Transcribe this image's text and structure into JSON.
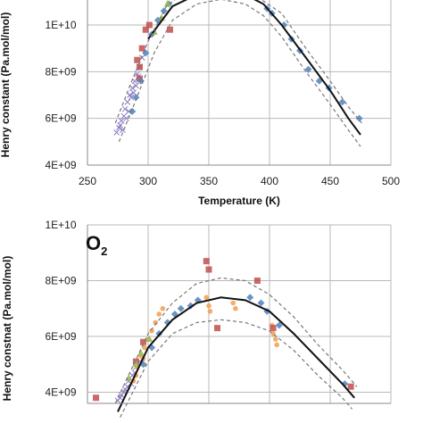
{
  "chart_data": [
    {
      "type": "scatter",
      "panel_label": "",
      "xlabel": "Temperature (K)",
      "ylabel": "Henry constant (Pa.mol/mol)",
      "xlim": [
        250,
        500
      ],
      "ylim": [
        4000000000.0,
        11000000000.0
      ],
      "x_ticks": [
        250,
        300,
        350,
        400,
        450,
        500
      ],
      "y_ticks": [
        4000000000.0,
        6000000000.0,
        8000000000.0,
        10000000000.0
      ],
      "y_tick_labels": [
        "4E+09",
        "6E+09",
        "8E+09",
        "1E+10"
      ],
      "grid": true,
      "series": [
        {
          "kind": "points",
          "marker": "cross",
          "color": "#8e7cc3",
          "points": [
            [
              274,
              5400000000.0
            ],
            [
              276,
              5600000000.0
            ],
            [
              278,
              5900000000.0
            ],
            [
              280,
              6100000000.0
            ],
            [
              281,
              6400000000.0
            ],
            [
              283,
              6700000000.0
            ],
            [
              285,
              7000000000.0
            ],
            [
              287,
              7300000000.0
            ],
            [
              289,
              7600000000.0
            ],
            [
              291,
              7900000000.0
            ],
            [
              293,
              8200000000.0
            ],
            [
              277,
              5700000000.0
            ],
            [
              282,
              6000000000.0
            ],
            [
              286,
              6900000000.0
            ],
            [
              290,
              7400000000.0
            ],
            [
              292,
              7800000000.0
            ],
            [
              288,
              7100000000.0
            ],
            [
              284,
              6300000000.0
            ],
            [
              279,
              5500000000.0
            ],
            [
              295,
              8600000000.0
            ]
          ]
        },
        {
          "kind": "points",
          "marker": "square",
          "color": "#c0504d",
          "points": [
            [
              291,
              8500000000.0
            ],
            [
              293,
              8200000000.0
            ],
            [
              295,
              9000000000.0
            ],
            [
              298,
              9800000000.0
            ],
            [
              301,
              10000000000.0
            ],
            [
              318,
              9800000000.0
            ],
            [
              293,
              7700000000.0
            ]
          ]
        },
        {
          "kind": "points",
          "marker": "diamond",
          "color": "#4f81bd",
          "points": [
            [
              287,
              6300000000.0
            ],
            [
              290,
              6900000000.0
            ],
            [
              294,
              7600000000.0
            ],
            [
              298,
              8800000000.0
            ],
            [
              303,
              9600000000.0
            ],
            [
              308,
              10200000000.0
            ],
            [
              313,
              10600000000.0
            ],
            [
              317,
              10900000000.0
            ],
            [
              398,
              10700000000.0
            ],
            [
              402,
              10500000000.0
            ],
            [
              412,
              10000000000.0
            ],
            [
              418,
              9400000000.0
            ],
            [
              425,
              8900000000.0
            ],
            [
              432,
              8100000000.0
            ],
            [
              441,
              7600000000.0
            ],
            [
              449,
              7300000000.0
            ],
            [
              460,
              6700000000.0
            ],
            [
              474,
              6000000000.0
            ]
          ]
        },
        {
          "kind": "points",
          "marker": "triangle",
          "color": "#9bbb59",
          "points": [
            [
              305,
              9700000000.0
            ],
            [
              311,
              10300000000.0
            ],
            [
              316,
              10900000000.0
            ]
          ]
        },
        {
          "kind": "line",
          "style": "solid",
          "color": "#111111",
          "points": [
            [
              300,
              9400000000.0
            ],
            [
              320,
              10800000000.0
            ],
            [
              340,
              11300000000.0
            ],
            [
              360,
              11400000000.0
            ],
            [
              380,
              11300000000.0
            ],
            [
              395,
              10900000000.0
            ],
            [
              410,
              10000000000.0
            ],
            [
              430,
              8600000000.0
            ],
            [
              450,
              7200000000.0
            ],
            [
              465,
              6000000000.0
            ],
            [
              475,
              5300000000.0
            ]
          ]
        },
        {
          "kind": "line",
          "style": "dashed",
          "color": "#777777",
          "points": [
            [
              273,
              5800000000.0
            ],
            [
              285,
              7400000000.0
            ],
            [
              300,
              9300000000.0
            ],
            [
              315,
              10800000000.0
            ],
            [
              330,
              11400000000.0
            ],
            [
              350,
              11600000000.0
            ],
            [
              370,
              11500000000.0
            ],
            [
              390,
              11200000000.0
            ],
            [
              410,
              10500000000.0
            ],
            [
              430,
              9000000000.0
            ],
            [
              450,
              7600000000.0
            ],
            [
              465,
              6500000000.0
            ],
            [
              476,
              5800000000.0
            ]
          ]
        },
        {
          "kind": "line",
          "style": "dashed",
          "color": "#777777",
          "points": [
            [
              276,
              5000000000.0
            ],
            [
              290,
              6800000000.0
            ],
            [
              305,
              8800000000.0
            ],
            [
              320,
              10200000000.0
            ],
            [
              340,
              10900000000.0
            ],
            [
              360,
              11100000000.0
            ],
            [
              380,
              10900000000.0
            ],
            [
              395,
              10400000000.0
            ],
            [
              410,
              9500000000.0
            ],
            [
              430,
              8000000000.0
            ],
            [
              450,
              6600000000.0
            ],
            [
              465,
              5500000000.0
            ],
            [
              475,
              4800000000.0
            ]
          ]
        }
      ]
    },
    {
      "type": "scatter",
      "panel_label": "O",
      "panel_label_sub": "2",
      "xlabel": "",
      "ylabel": "Henry constnat (Pa.mol/mol)",
      "xlim": [
        250,
        500
      ],
      "ylim": [
        3600000000.0,
        10000000000.0
      ],
      "x_ticks": [
        250,
        300,
        350,
        400,
        450,
        500
      ],
      "y_ticks": [
        4000000000.0,
        6000000000.0,
        8000000000.0,
        10000000000.0
      ],
      "y_tick_labels": [
        "4E+09",
        "6E+09",
        "8E+09",
        "1E+10"
      ],
      "grid": true,
      "series": [
        {
          "kind": "points",
          "marker": "cross",
          "color": "#8e7cc3",
          "points": [
            [
              275,
              3700000000.0
            ],
            [
              278,
              3900000000.0
            ],
            [
              281,
              4100000000.0
            ],
            [
              284,
              4400000000.0
            ],
            [
              287,
              4600000000.0
            ],
            [
              290,
              4900000000.0
            ],
            [
              293,
              5100000000.0
            ],
            [
              280,
              4000000000.0
            ],
            [
              286,
              4300000000.0
            ],
            [
              289,
              4700000000.0
            ],
            [
              283,
              4200000000.0
            ],
            [
              277,
              3800000000.0
            ]
          ]
        },
        {
          "kind": "points",
          "marker": "circle",
          "color": "#f2a359",
          "points": [
            [
              288,
              4400000000.0
            ],
            [
              291,
              4900000000.0
            ],
            [
              294,
              5300000000.0
            ],
            [
              297,
              5600000000.0
            ],
            [
              300,
              5900000000.0
            ],
            [
              303,
              6200000000.0
            ],
            [
              306,
              6500000000.0
            ],
            [
              309,
              6800000000.0
            ],
            [
              312,
              7000000000.0
            ],
            [
              348,
              7400000000.0
            ],
            [
              350,
              7100000000.0
            ],
            [
              351,
              6900000000.0
            ],
            [
              370,
              7200000000.0
            ],
            [
              372,
              7000000000.0
            ],
            [
              402,
              6400000000.0
            ],
            [
              403,
              6100000000.0
            ],
            [
              405,
              5900000000.0
            ],
            [
              406,
              5700000000.0
            ],
            [
              290,
              4600000000.0
            ],
            [
              296,
              5200000000.0
            ]
          ]
        },
        {
          "kind": "points",
          "marker": "square",
          "color": "#c0504d",
          "points": [
            [
              257,
              3800000000.0
            ],
            [
              290,
              5100000000.0
            ],
            [
              296,
              5800000000.0
            ],
            [
              348,
              8700000000.0
            ],
            [
              350,
              8400000000.0
            ],
            [
              357,
              6300000000.0
            ],
            [
              390,
              8000000000.0
            ],
            [
              403,
              6300000000.0
            ],
            [
              467,
              4200000000.0
            ]
          ]
        },
        {
          "kind": "points",
          "marker": "diamond",
          "color": "#4f81bd",
          "points": [
            [
              296,
              5000000000.0
            ],
            [
              303,
              5600000000.0
            ],
            [
              309,
              6100000000.0
            ],
            [
              316,
              6500000000.0
            ],
            [
              322,
              6800000000.0
            ],
            [
              327,
              7000000000.0
            ],
            [
              335,
              7100000000.0
            ],
            [
              341,
              7300000000.0
            ],
            [
              384,
              7400000000.0
            ],
            [
              393,
              7200000000.0
            ],
            [
              398,
              6900000000.0
            ],
            [
              408,
              6400000000.0
            ],
            [
              462,
              4300000000.0
            ]
          ]
        },
        {
          "kind": "points",
          "marker": "triangle",
          "color": "#9bbb59",
          "points": [
            [
              284,
              4500000000.0
            ],
            [
              290,
              5000000000.0
            ],
            [
              294,
              5400000000.0
            ],
            [
              301,
              5900000000.0
            ]
          ]
        },
        {
          "kind": "line",
          "style": "solid",
          "color": "#111111",
          "points": [
            [
              275,
              3300000000.0
            ],
            [
              300,
              5600000000.0
            ],
            [
              320,
              6600000000.0
            ],
            [
              340,
              7200000000.0
            ],
            [
              360,
              7400000000.0
            ],
            [
              380,
              7300000000.0
            ],
            [
              400,
              6900000000.0
            ],
            [
              420,
              6100000000.0
            ],
            [
              440,
              5200000000.0
            ],
            [
              460,
              4300000000.0
            ],
            [
              470,
              3800000000.0
            ]
          ]
        },
        {
          "kind": "line",
          "style": "dashed",
          "color": "#777777",
          "points": [
            [
              273,
              3600000000.0
            ],
            [
              300,
              6100000000.0
            ],
            [
              320,
              7200000000.0
            ],
            [
              340,
              7900000000.0
            ],
            [
              360,
              8100000000.0
            ],
            [
              380,
              8000000000.0
            ],
            [
              400,
              7500000000.0
            ],
            [
              420,
              6700000000.0
            ],
            [
              440,
              5700000000.0
            ],
            [
              460,
              4800000000.0
            ],
            [
              472,
              4200000000.0
            ]
          ]
        },
        {
          "kind": "line",
          "style": "dashed",
          "color": "#777777",
          "points": [
            [
              277,
              3100000000.0
            ],
            [
              300,
              5100000000.0
            ],
            [
              320,
              6100000000.0
            ],
            [
              340,
              6500000000.0
            ],
            [
              360,
              6600000000.0
            ],
            [
              380,
              6500000000.0
            ],
            [
              400,
              6200000000.0
            ],
            [
              420,
              5500000000.0
            ],
            [
              440,
              4600000000.0
            ],
            [
              460,
              3800000000.0
            ],
            [
              468,
              3400000000.0
            ]
          ]
        }
      ]
    }
  ]
}
